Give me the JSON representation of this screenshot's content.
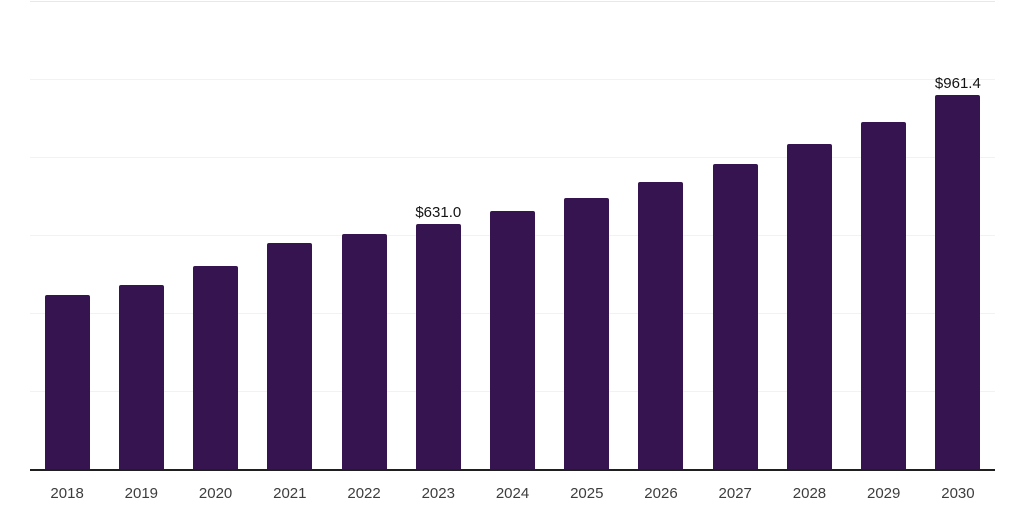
{
  "chart_data": {
    "type": "bar",
    "title": "",
    "xlabel": "",
    "ylabel": "",
    "categories": [
      "2018",
      "2019",
      "2020",
      "2021",
      "2022",
      "2023",
      "2024",
      "2025",
      "2026",
      "2027",
      "2028",
      "2029",
      "2030"
    ],
    "values": [
      448.0,
      473.5,
      522.0,
      581.5,
      604.0,
      631.0,
      664.5,
      697.0,
      737.5,
      784.5,
      835.5,
      892.5,
      961.4
    ],
    "data_labels": {
      "2023": "$631.0",
      "2030": "$961.4"
    },
    "ylim": [
      0,
      1200
    ],
    "gridline_step": 200,
    "grid": true,
    "legend": false,
    "value_prefix": "$"
  },
  "style": {
    "bar_color": "#361450",
    "axis_color": "#1f1f1f",
    "gridline_color": "#f2f2f2",
    "top_gridline_color": "#e8e8e8",
    "tick_label_color": "#3d3d3d",
    "data_label_color": "#141414",
    "background_color": "#ffffff"
  }
}
